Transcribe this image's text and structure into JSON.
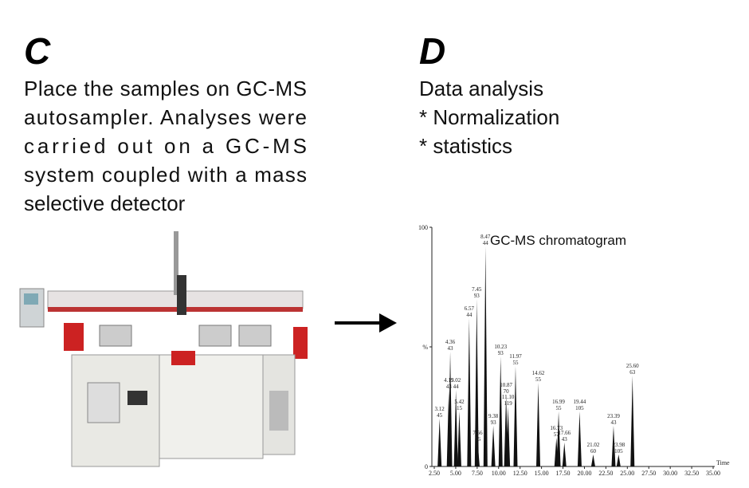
{
  "panel_c": {
    "label": "C",
    "lines": [
      "Place the samples on GC-MS",
      "autosampler. Analyses were",
      "carried out on a GC-MS",
      "system coupled with a mass",
      "selective detector"
    ]
  },
  "panel_d": {
    "label": "D",
    "lines": [
      "Data analysis",
      "* Normalization",
      "* statistics"
    ]
  },
  "chart_data": {
    "type": "chromatogram",
    "title": "GC-MS chromatogram",
    "xlabel": "Time",
    "x": [
      3.12,
      4.19,
      4.36,
      5.02,
      5.42,
      6.57,
      7.45,
      7.56,
      8.47,
      9.38,
      10.23,
      10.87,
      11.97,
      11.1,
      14.62,
      16.73,
      16.99,
      17.66,
      19.44,
      21.02,
      23.39,
      23.98,
      25.6
    ],
    "x_labels": [
      "3.12",
      "4.19",
      "4.36",
      "5.02",
      "5.42",
      "6.57",
      "7.45",
      "7.56",
      "8.47",
      "9.38",
      "10.23",
      "10.87",
      "11.97",
      "11.10",
      "14.62",
      "16.73",
      "16.99",
      "17.66",
      "19.44",
      "21.02",
      "23.39",
      "23.98",
      "25.60"
    ],
    "ions": [
      45,
      43,
      43,
      44,
      15,
      44,
      93,
      56,
      44,
      93,
      93,
      70,
      55,
      119,
      55,
      57,
      55,
      43,
      105,
      60,
      43,
      105,
      63
    ],
    "values": [
      20,
      32,
      48,
      32,
      23,
      62,
      70,
      10,
      92,
      17,
      46,
      30,
      42,
      25,
      35,
      12,
      23,
      10,
      23,
      5,
      17,
      5,
      38
    ],
    "color": "#111111",
    "xlim": [
      2.5,
      35
    ],
    "xticks": [
      {
        "value": 2.5,
        "label": "2.50"
      },
      {
        "value": 5,
        "label": "5.00"
      },
      {
        "value": 7.5,
        "label": "7.50"
      },
      {
        "value": 10,
        "label": "10.00"
      },
      {
        "value": 12.5,
        "label": "12.50"
      },
      {
        "value": 15,
        "label": "15.00"
      },
      {
        "value": 17.5,
        "label": "17.50"
      },
      {
        "value": 20,
        "label": "20.00"
      },
      {
        "value": 22.5,
        "label": "22.50"
      },
      {
        "value": 25,
        "label": "25.00"
      },
      {
        "value": 27.5,
        "label": "27.50"
      },
      {
        "value": 30,
        "label": "30.00"
      },
      {
        "value": 32.5,
        "label": "32.50"
      },
      {
        "value": 35,
        "label": "35.00"
      }
    ],
    "ylim": [
      0,
      100
    ],
    "yticks": [
      0,
      {
        "value": 50,
        "label": "%"
      },
      100
    ]
  }
}
